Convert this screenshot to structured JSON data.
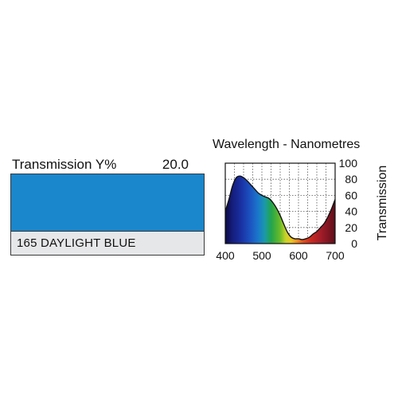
{
  "swatch": {
    "transmission_label": "Transmission Y%",
    "transmission_value": "20.0",
    "name": "165 DAYLIGHT BLUE",
    "color": "#1a86cc"
  },
  "chart_data": {
    "type": "area",
    "title": "Wavelength - Nanometres",
    "xlabel": "",
    "ylabel": "Transmission",
    "xlim": [
      400,
      700
    ],
    "ylim": [
      0,
      100
    ],
    "grid": true,
    "x_ticks": [
      400,
      500,
      600,
      700
    ],
    "x_tick_labels": [
      "400",
      "500",
      "600",
      "700"
    ],
    "y_ticks": [
      0,
      20,
      40,
      60,
      80,
      100
    ],
    "y_tick_labels": [
      "0",
      "20",
      "40",
      "60",
      "80",
      "100"
    ],
    "x": [
      400,
      410,
      420,
      430,
      440,
      450,
      460,
      470,
      480,
      490,
      500,
      510,
      520,
      530,
      540,
      550,
      560,
      570,
      580,
      590,
      600,
      610,
      620,
      630,
      640,
      650,
      660,
      670,
      680,
      690,
      700
    ],
    "y": [
      40,
      55,
      72,
      82,
      84,
      82,
      78,
      73,
      68,
      63,
      60,
      58,
      56,
      51,
      44,
      35,
      24,
      14,
      8,
      6,
      6,
      5,
      6,
      8,
      12,
      15,
      20,
      25,
      33,
      43,
      55
    ]
  }
}
